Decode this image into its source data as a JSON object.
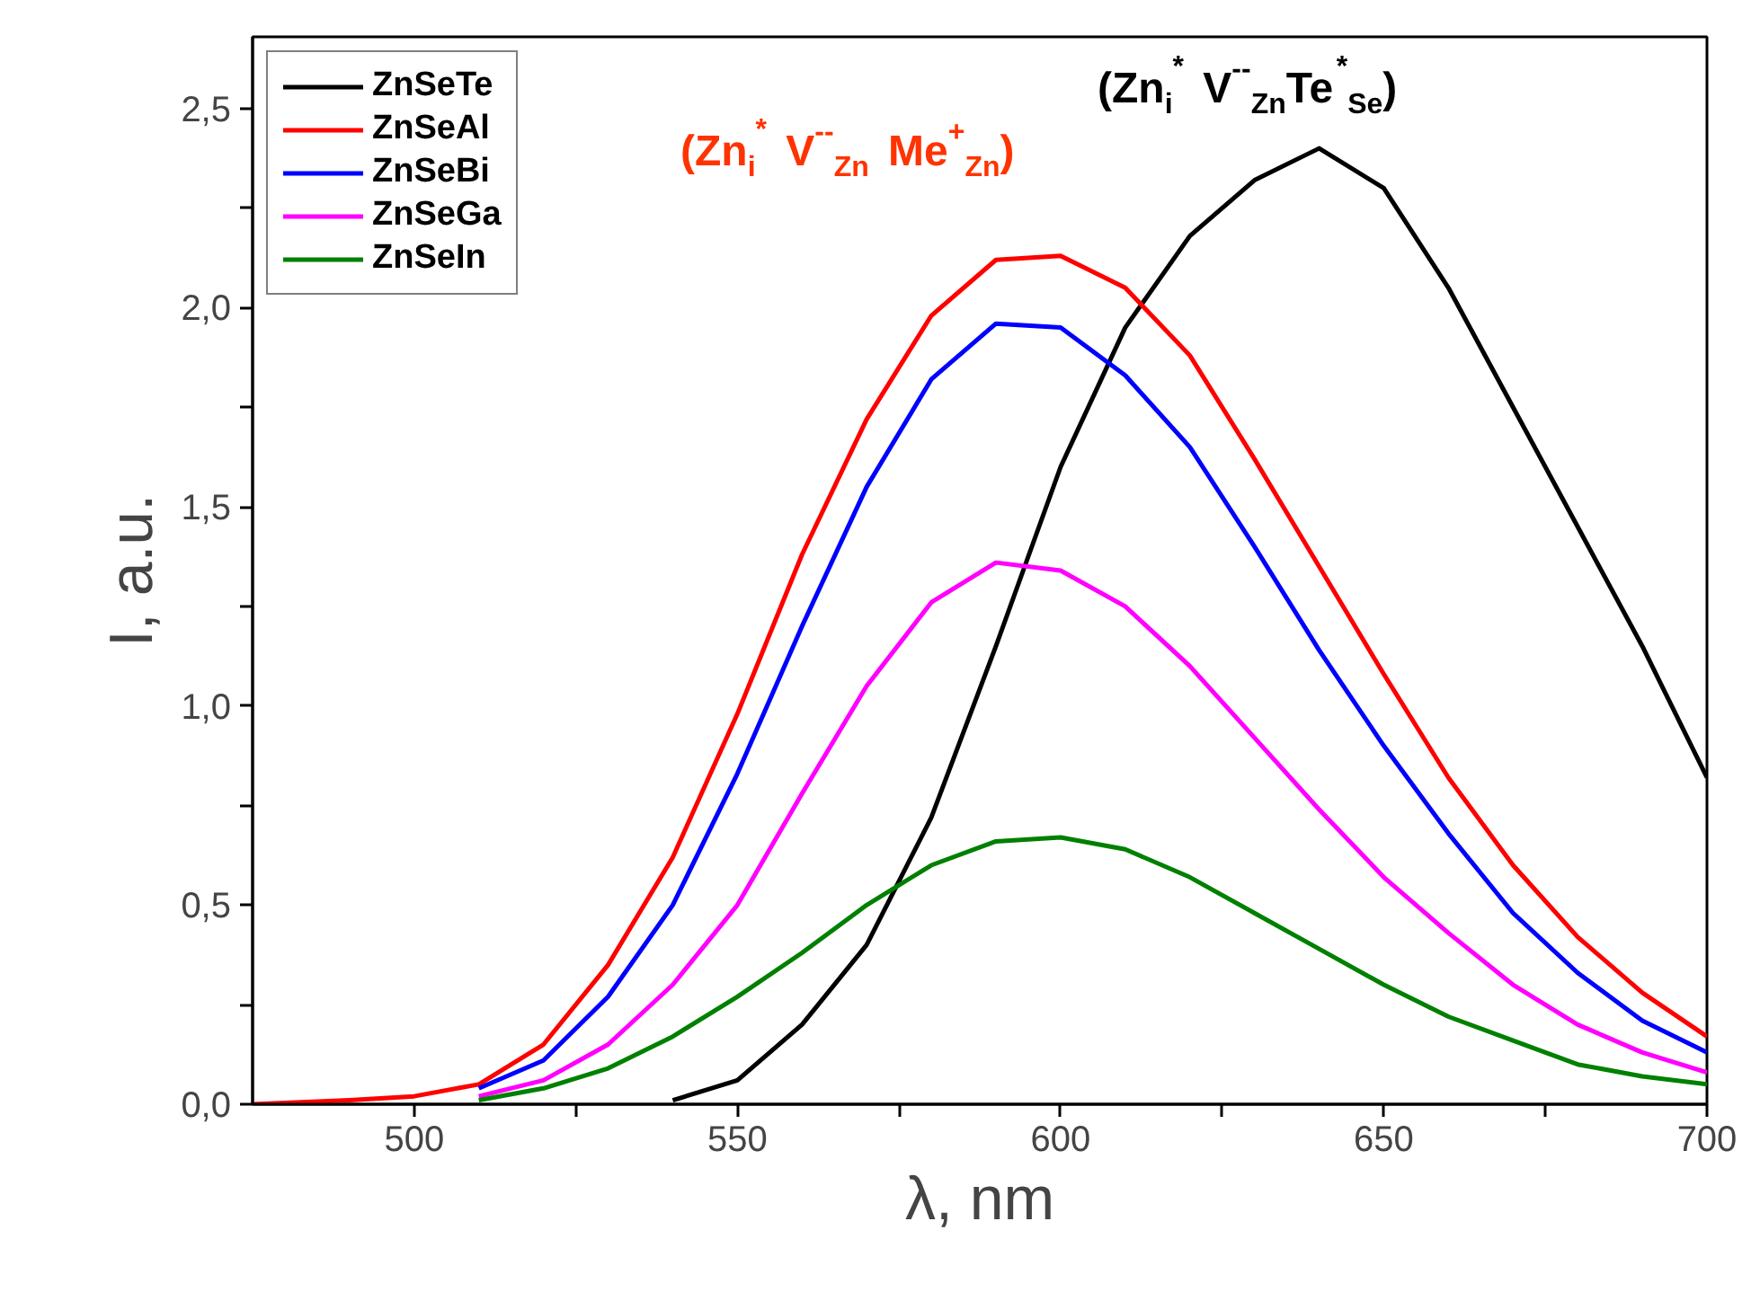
{
  "chart_data": {
    "type": "line",
    "xlabel": "λ, nm",
    "ylabel": "I, a.u.",
    "x": [
      475,
      490,
      500,
      510,
      520,
      530,
      540,
      550,
      560,
      570,
      580,
      590,
      600,
      610,
      620,
      630,
      640,
      650,
      660,
      670,
      680,
      690,
      700
    ],
    "series": [
      {
        "name": "ZnSeTe",
        "color": "#000000",
        "x": [
          540,
          550,
          560,
          570,
          580,
          590,
          600,
          610,
          620,
          630,
          640,
          650,
          660,
          670,
          680,
          690,
          700
        ],
        "values": [
          0.01,
          0.06,
          0.2,
          0.4,
          0.72,
          1.15,
          1.6,
          1.95,
          2.18,
          2.32,
          2.4,
          2.3,
          2.05,
          1.75,
          1.45,
          1.15,
          0.82
        ]
      },
      {
        "name": "ZnSeAl",
        "color": "#ff0000",
        "values": [
          0,
          0.01,
          0.02,
          0.05,
          0.15,
          0.35,
          0.62,
          0.98,
          1.38,
          1.72,
          1.98,
          2.12,
          2.13,
          2.05,
          1.88,
          1.62,
          1.35,
          1.08,
          0.82,
          0.6,
          0.42,
          0.28,
          0.17
        ]
      },
      {
        "name": "ZnSeBi",
        "color": "#0000ff",
        "x": [
          510,
          520,
          530,
          540,
          550,
          560,
          570,
          580,
          590,
          600,
          610,
          620,
          630,
          640,
          650,
          660,
          670,
          680,
          690,
          700
        ],
        "values": [
          0.04,
          0.11,
          0.27,
          0.5,
          0.83,
          1.2,
          1.55,
          1.82,
          1.96,
          1.95,
          1.83,
          1.65,
          1.4,
          1.14,
          0.9,
          0.68,
          0.48,
          0.33,
          0.21,
          0.13
        ]
      },
      {
        "name": "ZnSeGa",
        "color": "#ff00ff",
        "x": [
          510,
          520,
          530,
          540,
          550,
          560,
          570,
          580,
          590,
          600,
          610,
          620,
          630,
          640,
          650,
          660,
          670,
          680,
          690,
          700
        ],
        "values": [
          0.02,
          0.06,
          0.15,
          0.3,
          0.5,
          0.78,
          1.05,
          1.26,
          1.36,
          1.34,
          1.25,
          1.1,
          0.92,
          0.74,
          0.57,
          0.43,
          0.3,
          0.2,
          0.13,
          0.08
        ]
      },
      {
        "name": "ZnSeIn",
        "color": "#008000",
        "x": [
          510,
          520,
          530,
          540,
          550,
          560,
          570,
          580,
          590,
          600,
          610,
          620,
          630,
          640,
          650,
          660,
          670,
          680,
          690,
          700
        ],
        "values": [
          0.01,
          0.04,
          0.09,
          0.17,
          0.27,
          0.38,
          0.5,
          0.6,
          0.66,
          0.67,
          0.64,
          0.57,
          0.48,
          0.39,
          0.3,
          0.22,
          0.16,
          0.1,
          0.07,
          0.05
        ]
      }
    ],
    "annotations": [
      "(Zn$_{i}$$^{*}$ V$^{--}$$_{Zn}$ Me$^{+}$$_{Zn}$)",
      "(Zn$_{i}$$^{*}$ V$^{--}$$_{Zn}$Te$^{*}$$_{Se}$)"
    ],
    "xlim": [
      475,
      700
    ],
    "xticks": [
      500,
      {
        "value": 525,
        "label": null
      },
      550,
      {
        "value": 575,
        "label": null
      },
      600,
      {
        "value": 625,
        "label": null
      },
      650,
      {
        "value": 675,
        "label": null
      },
      700
    ],
    "ylim": [
      0,
      2.68
    ],
    "yticks": [
      {
        "value": 0,
        "label": "0,0"
      },
      {
        "value": 0.25,
        "label": null
      },
      {
        "value": 0.5,
        "label": "0,5"
      },
      {
        "value": 0.75,
        "label": null
      },
      {
        "value": 1.0,
        "label": "1,0"
      },
      {
        "value": 1.25,
        "label": null
      },
      {
        "value": 1.5,
        "label": "1,5"
      },
      {
        "value": 1.75,
        "label": null
      },
      {
        "value": 2.0,
        "label": "2,0"
      },
      {
        "value": 2.25,
        "label": null
      },
      {
        "value": 2.5,
        "label": "2,5"
      }
    ],
    "grid": false,
    "legend": "top left",
    "line_style": "solid",
    "marker": "none"
  }
}
